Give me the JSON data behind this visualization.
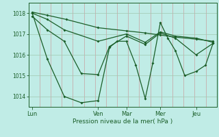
{
  "title": "",
  "xlabel": "Pression niveau de la mer( hPa )",
  "bg_color": "#c0ece6",
  "line_color": "#1a5e28",
  "grid_color_v": "#c8a0a0",
  "grid_color_h": "#a0c8b0",
  "ylim": [
    1013.5,
    1018.5
  ],
  "yticks": [
    1014,
    1015,
    1016,
    1017,
    1018
  ],
  "day_labels": [
    "Lun",
    "Ven",
    "Mar",
    "Mer",
    "Jeu"
  ],
  "day_positions": [
    0.02,
    0.37,
    0.52,
    0.7,
    0.89
  ],
  "n_vgrid": 18,
  "series": [
    {
      "x": [
        0.02,
        0.1,
        0.19,
        0.28,
        0.37,
        0.43,
        0.47,
        0.52,
        0.57,
        0.62,
        0.66,
        0.7,
        0.74,
        0.78,
        0.83,
        0.89,
        0.94,
        0.98
      ],
      "y": [
        1018.0,
        1015.8,
        1014.0,
        1013.7,
        1013.8,
        1016.35,
        1016.65,
        1016.65,
        1015.5,
        1013.9,
        1015.6,
        1017.55,
        1016.8,
        1016.2,
        1015.0,
        1015.2,
        1015.5,
        1016.55
      ]
    },
    {
      "x": [
        0.02,
        0.1,
        0.19,
        0.28,
        0.37,
        0.43,
        0.52,
        0.62,
        0.7,
        0.78,
        0.89,
        0.98
      ],
      "y": [
        1017.85,
        1017.2,
        1016.65,
        1015.1,
        1015.05,
        1016.4,
        1016.9,
        1016.5,
        1017.05,
        1016.8,
        1016.0,
        1016.55
      ]
    },
    {
      "x": [
        0.02,
        0.1,
        0.19,
        0.37,
        0.52,
        0.62,
        0.7,
        0.78,
        0.89,
        0.98
      ],
      "y": [
        1018.0,
        1017.7,
        1017.2,
        1016.65,
        1017.0,
        1016.6,
        1017.1,
        1016.9,
        1016.8,
        1016.6
      ]
    },
    {
      "x": [
        0.02,
        0.1,
        0.2,
        0.37,
        0.52,
        0.62,
        0.7,
        0.78,
        0.89,
        0.98
      ],
      "y": [
        1018.05,
        1017.9,
        1017.7,
        1017.3,
        1017.15,
        1017.05,
        1016.95,
        1016.85,
        1016.75,
        1016.65
      ]
    }
  ]
}
